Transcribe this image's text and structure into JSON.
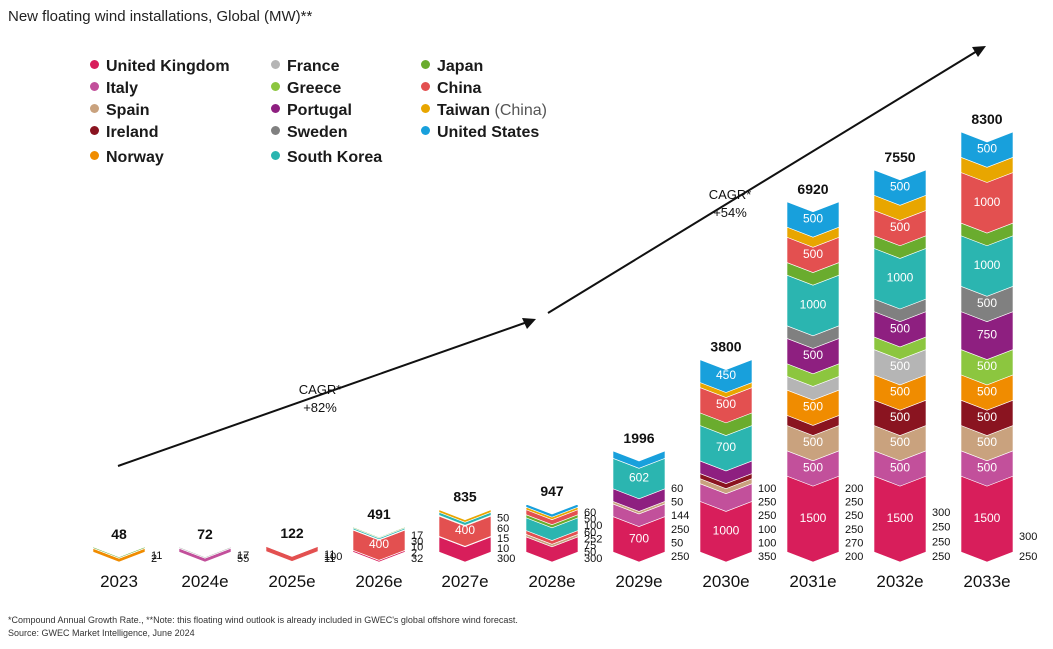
{
  "title": "New floating wind installations, Global  (MW)**",
  "legend": [
    {
      "label": "United Kingdom",
      "color": "#d81e5b"
    },
    {
      "label": "France",
      "color": "#b5b5b5"
    },
    {
      "label": "Japan",
      "color": "#6aac2e"
    },
    {
      "label": "Italy",
      "color": "#c2509b"
    },
    {
      "label": "Greece",
      "color": "#8cc63f"
    },
    {
      "label": "China",
      "color": "#e35050"
    },
    {
      "label": "Spain",
      "color": "#c9a27e"
    },
    {
      "label": "Portugal",
      "color": "#8e1f80"
    },
    {
      "label": "Taiwan",
      "note": "(China)",
      "color": "#e8a600"
    },
    {
      "label": "Ireland",
      "color": "#8a1420"
    },
    {
      "label": "Sweden",
      "color": "#808080"
    },
    {
      "label": "United States",
      "color": "#18a0dc"
    },
    {
      "label": "Norway",
      "color": "#f08c00"
    },
    {
      "label": "South Korea",
      "color": "#2bb5b0"
    }
  ],
  "cagr": [
    {
      "label": "CAGR*",
      "value": "+82%"
    },
    {
      "label": "CAGR*",
      "value": "+54%"
    }
  ],
  "footnote": {
    "line1": "*Compound Annual Growth Rate., **Note: this floating wind outlook is already included in GWEC's global offshore wind forecast.",
    "line2": "Source: GWEC Market Intelligence, June 2024"
  },
  "chart_data": {
    "type": "bar",
    "stacked": true,
    "title": "New floating wind installations, Global  (MW)**",
    "categories": [
      "2023",
      "2024e",
      "2025e",
      "2026e",
      "2027e",
      "2028e",
      "2029e",
      "2030e",
      "2031e",
      "2032e",
      "2033e"
    ],
    "totals": [
      48,
      72,
      122,
      491,
      835,
      947,
      1996,
      3800,
      6920,
      7550,
      8300
    ],
    "stacks": [
      [
        {
          "c": "Norway",
          "v": 35
        },
        {
          "c": "China",
          "v": 2
        },
        {
          "c": "Japan",
          "v": 11
        }
      ],
      [
        {
          "c": "Italy",
          "v": 55
        },
        {
          "c": "France",
          "v": 17
        }
      ],
      [
        {
          "c": "United Kingdom",
          "v": 11
        },
        {
          "c": "China",
          "v": 100
        },
        {
          "c": "United States",
          "v": 11
        }
      ],
      [
        {
          "c": "United Kingdom",
          "v": 32
        },
        {
          "c": "Spain",
          "v": 2
        },
        {
          "c": "China",
          "v": 400
        },
        {
          "c": "Norway",
          "v": 10
        },
        {
          "c": "South Korea",
          "v": 30
        },
        {
          "c": "Japan",
          "v": 17
        }
      ],
      [
        {
          "c": "United Kingdom",
          "v": 300
        },
        {
          "c": "Spain",
          "v": 10
        },
        {
          "c": "China",
          "v": 400
        },
        {
          "c": "Norway",
          "v": 15
        },
        {
          "c": "South Korea",
          "v": 60
        },
        {
          "c": "Taiwan",
          "v": 50
        }
      ],
      [
        {
          "c": "United Kingdom",
          "v": 300
        },
        {
          "c": "Spain",
          "v": 50
        },
        {
          "c": "China",
          "v": 75
        },
        {
          "c": "South Korea",
          "v": 252
        },
        {
          "c": "Japan",
          "v": 60
        },
        {
          "c": "China",
          "v": 100
        },
        {
          "c": "Taiwan",
          "v": 50
        },
        {
          "c": "United States",
          "v": 60
        }
      ],
      [
        {
          "c": "United Kingdom",
          "v": 700
        },
        {
          "c": "Italy",
          "v": 250
        },
        {
          "c": "Spain",
          "v": 50
        },
        {
          "c": "Portugal",
          "v": 250
        },
        {
          "c": "South Korea",
          "v": 602
        },
        {
          "c": "United States",
          "v": 144
        }
      ],
      [
        {
          "c": "United Kingdom",
          "v": 1000
        },
        {
          "c": "Italy",
          "v": 350
        },
        {
          "c": "Spain",
          "v": 100
        },
        {
          "c": "Ireland",
          "v": 100
        },
        {
          "c": "Portugal",
          "v": 250
        },
        {
          "c": "South Korea",
          "v": 700
        },
        {
          "c": "Japan",
          "v": 250
        },
        {
          "c": "China",
          "v": 500
        },
        {
          "c": "Taiwan",
          "v": 100
        },
        {
          "c": "United States",
          "v": 450
        }
      ],
      [
        {
          "c": "United Kingdom",
          "v": 1500
        },
        {
          "c": "Italy",
          "v": 500
        },
        {
          "c": "Spain",
          "v": 500
        },
        {
          "c": "Ireland",
          "v": 200
        },
        {
          "c": "Norway",
          "v": 500
        },
        {
          "c": "France",
          "v": 270
        },
        {
          "c": "Greece",
          "v": 250
        },
        {
          "c": "Portugal",
          "v": 500
        },
        {
          "c": "Sweden",
          "v": 250
        },
        {
          "c": "South Korea",
          "v": 1000
        },
        {
          "c": "Japan",
          "v": 250
        },
        {
          "c": "China",
          "v": 500
        },
        {
          "c": "Taiwan",
          "v": 200
        },
        {
          "c": "United States",
          "v": 500
        }
      ],
      [
        {
          "c": "United Kingdom",
          "v": 1500
        },
        {
          "c": "Italy",
          "v": 500
        },
        {
          "c": "Spain",
          "v": 500
        },
        {
          "c": "Ireland",
          "v": 500
        },
        {
          "c": "Norway",
          "v": 500
        },
        {
          "c": "France",
          "v": 500
        },
        {
          "c": "Greece",
          "v": 250
        },
        {
          "c": "Portugal",
          "v": 500
        },
        {
          "c": "Sweden",
          "v": 250
        },
        {
          "c": "South Korea",
          "v": 1000
        },
        {
          "c": "Japan",
          "v": 250
        },
        {
          "c": "China",
          "v": 500
        },
        {
          "c": "Taiwan",
          "v": 300
        },
        {
          "c": "United States",
          "v": 500
        }
      ],
      [
        {
          "c": "United Kingdom",
          "v": 1500
        },
        {
          "c": "Italy",
          "v": 500
        },
        {
          "c": "Spain",
          "v": 500
        },
        {
          "c": "Ireland",
          "v": 500
        },
        {
          "c": "Norway",
          "v": 500
        },
        {
          "c": "Greece",
          "v": 500
        },
        {
          "c": "Portugal",
          "v": 750
        },
        {
          "c": "Sweden",
          "v": 500
        },
        {
          "c": "South Korea",
          "v": 1000
        },
        {
          "c": "Japan",
          "v": 250
        },
        {
          "c": "China",
          "v": 1000
        },
        {
          "c": "Taiwan",
          "v": 300
        },
        {
          "c": "United States",
          "v": 500
        }
      ]
    ],
    "inside_labels": [
      [],
      [],
      [],
      [
        "400"
      ],
      [
        "400"
      ],
      [],
      [
        "700",
        "602"
      ],
      [
        "1000",
        "700",
        "500",
        "450"
      ],
      [
        "1500",
        "500",
        "500",
        "500",
        "500",
        "1000",
        "500",
        "500"
      ],
      [
        "1500",
        "500",
        "500",
        "500",
        "500",
        "500",
        "500",
        "1000",
        "500",
        "500"
      ],
      [
        "1500",
        "500",
        "500",
        "500",
        "500",
        "500",
        "750",
        "500",
        "1000",
        "1000",
        "500"
      ]
    ],
    "side_labels": [
      [
        "11",
        "2"
      ],
      [
        "17",
        "55"
      ],
      [
        "11",
        "100",
        "11"
      ],
      [
        "17",
        "30",
        "10",
        "2",
        "32"
      ],
      [
        "50",
        "60",
        "15",
        "10",
        "300"
      ],
      [
        "60",
        "50",
        "100",
        "60",
        "252",
        "75",
        "50",
        "300"
      ],
      [
        "60",
        "50",
        "144",
        "250",
        "50",
        "250"
      ],
      [
        "100",
        "250",
        "250",
        "100",
        "100",
        "350"
      ],
      [
        "200",
        "250",
        "250",
        "250",
        "270",
        "200"
      ],
      [
        "300",
        "250",
        "250",
        "250"
      ],
      [
        "300",
        "250"
      ]
    ],
    "ylim": [
      0,
      8300
    ]
  }
}
